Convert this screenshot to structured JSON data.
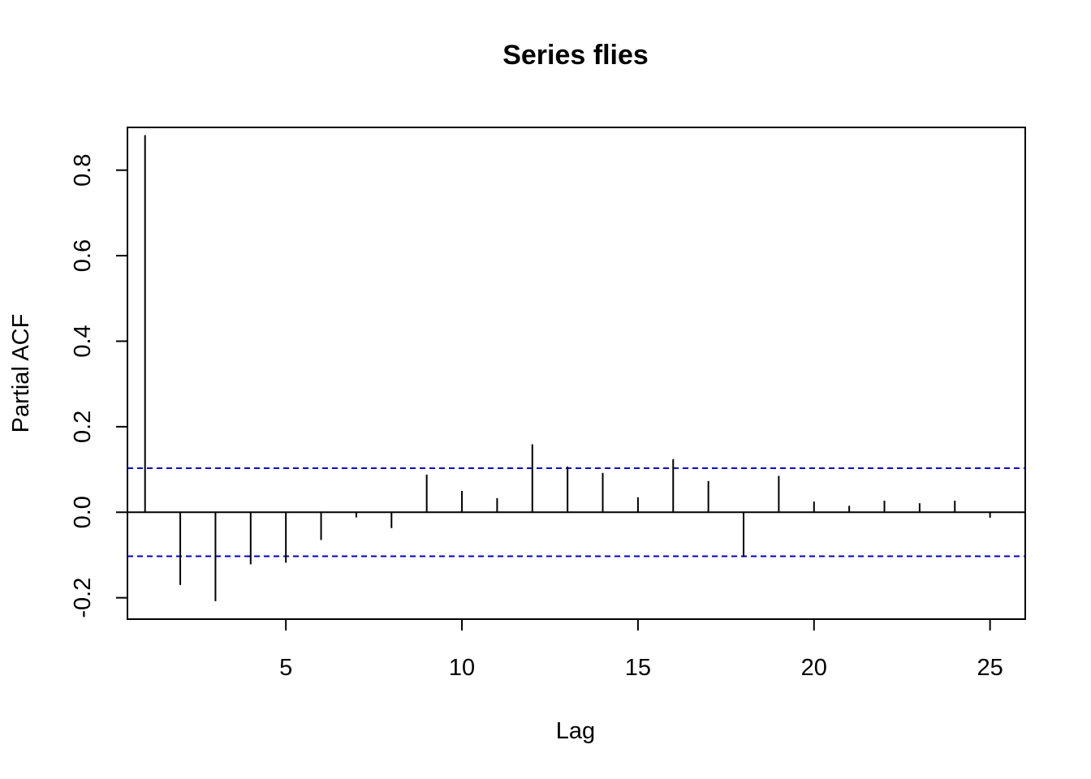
{
  "chart_data": {
    "type": "bar",
    "title": "Series  flies",
    "xlabel": "Lag",
    "ylabel": "Partial ACF",
    "xlim": [
      0.5,
      26
    ],
    "ylim": [
      -0.25,
      0.9
    ],
    "x_ticks": [
      5,
      10,
      15,
      20,
      25
    ],
    "y_ticks": [
      -0.2,
      0.0,
      0.2,
      0.4,
      0.6,
      0.8
    ],
    "y_tick_labels": [
      "-0.2",
      "0.0",
      "0.2",
      "0.4",
      "0.6",
      "0.8"
    ],
    "grid": false,
    "confidence_bound": 0.103,
    "confidence_color": "#0000CC",
    "series": [
      {
        "lags": [
          1,
          2,
          3,
          4,
          5,
          6,
          7,
          8,
          9,
          10,
          11,
          12,
          13,
          14,
          15,
          16,
          17,
          18,
          19,
          20,
          21,
          22,
          23,
          24,
          25
        ],
        "values": [
          0.882,
          -0.17,
          -0.208,
          -0.122,
          -0.118,
          -0.065,
          -0.012,
          -0.037,
          0.088,
          0.05,
          0.033,
          0.159,
          0.107,
          0.092,
          0.035,
          0.124,
          0.073,
          -0.105,
          0.085,
          0.025,
          0.015,
          0.027,
          0.021,
          0.027,
          -0.013
        ]
      }
    ]
  }
}
